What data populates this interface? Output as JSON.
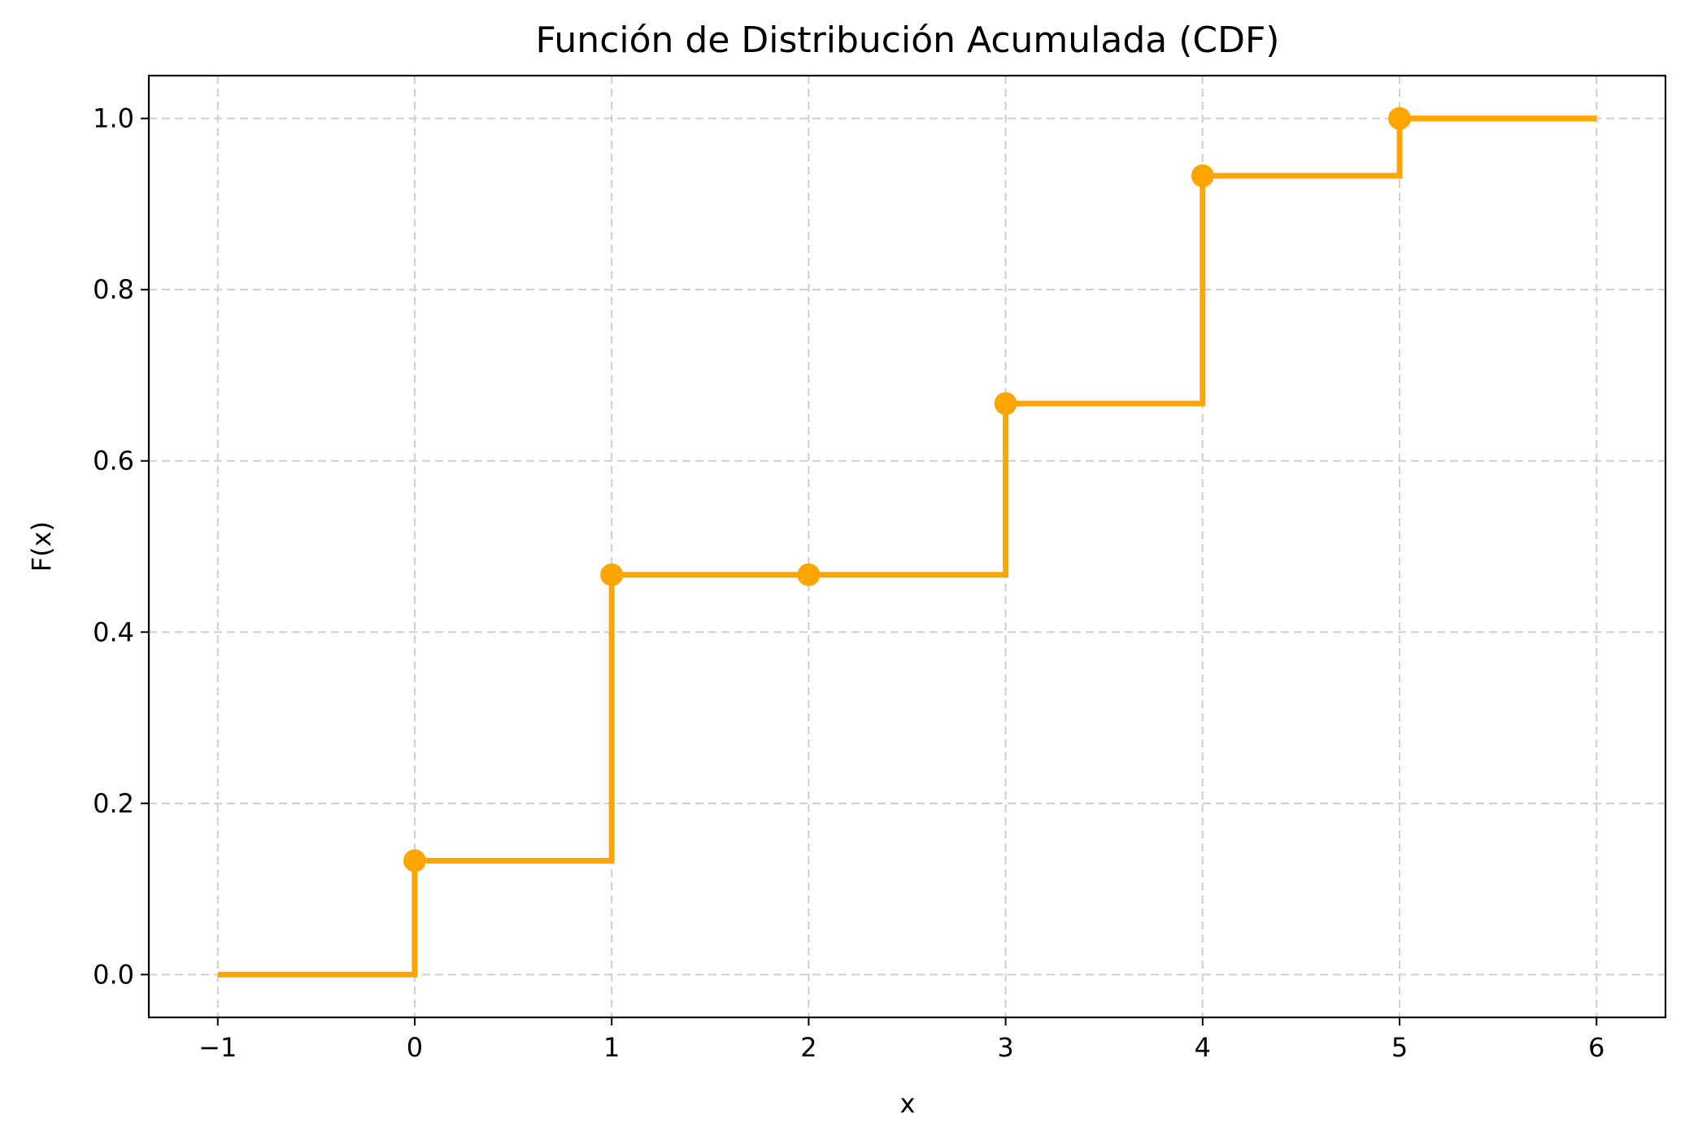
{
  "chart_data": {
    "type": "line",
    "title": "Función de Distribución Acumulada (CDF)",
    "xlabel": "x",
    "ylabel": "F(x)",
    "xlim": [
      -1.35,
      6.35
    ],
    "ylim": [
      -0.05,
      1.05
    ],
    "x_ticks": [
      -1,
      0,
      1,
      2,
      3,
      4,
      5,
      6
    ],
    "x_tick_labels": [
      "−1",
      "0",
      "1",
      "2",
      "3",
      "4",
      "5",
      "6"
    ],
    "y_ticks": [
      0.0,
      0.2,
      0.4,
      0.6,
      0.8,
      1.0
    ],
    "y_tick_labels": [
      "0.0",
      "0.2",
      "0.4",
      "0.6",
      "0.8",
      "1.0"
    ],
    "grid": true,
    "step_style": "post",
    "series": [
      {
        "color": "#ffa500",
        "x": [
          -1,
          0,
          1,
          2,
          3,
          4,
          5,
          6
        ],
        "y": [
          0.0,
          0.133,
          0.467,
          0.467,
          0.667,
          0.933,
          1.0,
          1.0
        ]
      }
    ],
    "markers": {
      "color": "#ffa500",
      "x": [
        0,
        1,
        2,
        3,
        4,
        5
      ],
      "y": [
        0.133,
        0.467,
        0.467,
        0.667,
        0.933,
        1.0
      ]
    }
  }
}
